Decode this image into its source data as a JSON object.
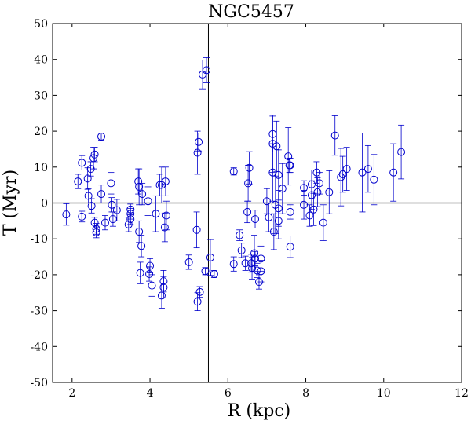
{
  "chart_data": {
    "type": "scatter",
    "title": "NGC5457",
    "xlabel": "R (kpc)",
    "ylabel": "T (Myr)",
    "xlim": [
      1.5,
      12
    ],
    "ylim": [
      -50,
      50
    ],
    "xticks": [
      2,
      4,
      6,
      8,
      10,
      12
    ],
    "yticks": [
      -50,
      -40,
      -30,
      -20,
      -10,
      0,
      10,
      20,
      30,
      40,
      50
    ],
    "grid": false,
    "marker_color": "#0000cc",
    "reference_lines": {
      "vertical_x": 5.5,
      "horizontal_y": 0
    },
    "points": [
      {
        "x": 1.85,
        "y": -3.2,
        "err": 3.0
      },
      {
        "x": 2.15,
        "y": 6.0,
        "err": 2.0
      },
      {
        "x": 2.25,
        "y": 11.2,
        "err": 2.0
      },
      {
        "x": 2.25,
        "y": -3.8,
        "err": 1.5
      },
      {
        "x": 2.4,
        "y": 6.8,
        "err": 3.0
      },
      {
        "x": 2.42,
        "y": 2.0,
        "err": 2.0
      },
      {
        "x": 2.48,
        "y": 9.5,
        "err": 2.0
      },
      {
        "x": 2.5,
        "y": -0.8,
        "err": 2.0
      },
      {
        "x": 2.55,
        "y": 12.5,
        "err": 3.0
      },
      {
        "x": 2.58,
        "y": 13.5,
        "err": 2.0
      },
      {
        "x": 2.58,
        "y": -5.5,
        "err": 1.5
      },
      {
        "x": 2.62,
        "y": -7.2,
        "err": 1.5
      },
      {
        "x": 2.62,
        "y": -8.2,
        "err": 1.5
      },
      {
        "x": 2.75,
        "y": 18.5,
        "err": 1.0
      },
      {
        "x": 2.75,
        "y": 2.5,
        "err": 2.5
      },
      {
        "x": 2.85,
        "y": -5.5,
        "err": 2.0
      },
      {
        "x": 3.0,
        "y": 5.5,
        "err": 3.0
      },
      {
        "x": 3.02,
        "y": -0.5,
        "err": 2.0
      },
      {
        "x": 3.05,
        "y": -4.5,
        "err": 2.0
      },
      {
        "x": 3.15,
        "y": -2.0,
        "err": 3.0
      },
      {
        "x": 3.45,
        "y": -6.0,
        "err": 2.0
      },
      {
        "x": 3.5,
        "y": -1.8,
        "err": 1.5
      },
      {
        "x": 3.5,
        "y": -3.0,
        "err": 1.5
      },
      {
        "x": 3.5,
        "y": -4.5,
        "err": 1.5
      },
      {
        "x": 3.7,
        "y": 6.0,
        "err": 3.5
      },
      {
        "x": 3.72,
        "y": 4.5,
        "err": 5.0
      },
      {
        "x": 3.72,
        "y": -8.0,
        "err": 3.0
      },
      {
        "x": 3.75,
        "y": -19.5,
        "err": 3.0
      },
      {
        "x": 3.78,
        "y": -12.0,
        "err": 3.0
      },
      {
        "x": 3.8,
        "y": 2.5,
        "err": 3.0
      },
      {
        "x": 3.95,
        "y": 0.5,
        "err": 4.0
      },
      {
        "x": 3.98,
        "y": -19.8,
        "err": 2.0
      },
      {
        "x": 4.0,
        "y": -17.5,
        "err": 2.0
      },
      {
        "x": 4.05,
        "y": -23.0,
        "err": 3.0
      },
      {
        "x": 4.15,
        "y": -3.0,
        "err": 5.0
      },
      {
        "x": 4.25,
        "y": 5.0,
        "err": 3.0
      },
      {
        "x": 4.3,
        "y": 5.0,
        "err": 5.0
      },
      {
        "x": 4.3,
        "y": -25.8,
        "err": 3.5
      },
      {
        "x": 4.35,
        "y": -21.8,
        "err": 3.0
      },
      {
        "x": 4.35,
        "y": -23.5,
        "err": 3.0
      },
      {
        "x": 4.38,
        "y": -6.8,
        "err": 4.0
      },
      {
        "x": 4.4,
        "y": 6.0,
        "err": 4.0
      },
      {
        "x": 4.42,
        "y": -3.5,
        "err": 4.0
      },
      {
        "x": 5.0,
        "y": -16.5,
        "err": 2.0
      },
      {
        "x": 5.2,
        "y": -7.5,
        "err": 5.0
      },
      {
        "x": 5.22,
        "y": 14.0,
        "err": 6.0
      },
      {
        "x": 5.25,
        "y": 17.0,
        "err": 2.5
      },
      {
        "x": 5.22,
        "y": -27.5,
        "err": 2.5
      },
      {
        "x": 5.28,
        "y": -24.8,
        "err": 1.5
      },
      {
        "x": 5.35,
        "y": 35.8,
        "err": 4.0
      },
      {
        "x": 5.45,
        "y": 37.0,
        "err": 3.5
      },
      {
        "x": 5.42,
        "y": -19.0,
        "err": 1.0
      },
      {
        "x": 5.55,
        "y": -15.2,
        "err": 5.0
      },
      {
        "x": 5.65,
        "y": -19.8,
        "err": 1.0
      },
      {
        "x": 6.15,
        "y": 8.8,
        "err": 1.0
      },
      {
        "x": 6.15,
        "y": -17.0,
        "err": 2.0
      },
      {
        "x": 6.3,
        "y": -9.0,
        "err": 1.5
      },
      {
        "x": 6.35,
        "y": -13.2,
        "err": 2.0
      },
      {
        "x": 6.45,
        "y": -16.8,
        "err": 2.0
      },
      {
        "x": 6.5,
        "y": -2.5,
        "err": 3.0
      },
      {
        "x": 6.52,
        "y": 5.5,
        "err": 5.0
      },
      {
        "x": 6.55,
        "y": 9.8,
        "err": 4.5
      },
      {
        "x": 6.6,
        "y": -16.8,
        "err": 2.5
      },
      {
        "x": 6.62,
        "y": -18.2,
        "err": 3.0
      },
      {
        "x": 6.68,
        "y": -14.0,
        "err": 5.0
      },
      {
        "x": 6.7,
        "y": -4.5,
        "err": 2.5
      },
      {
        "x": 6.7,
        "y": -15.5,
        "err": 2.0
      },
      {
        "x": 6.75,
        "y": -18.8,
        "err": 2.0
      },
      {
        "x": 6.8,
        "y": -22.0,
        "err": 2.0
      },
      {
        "x": 6.85,
        "y": -19.0,
        "err": 3.0
      },
      {
        "x": 6.85,
        "y": -15.5,
        "err": 3.5
      },
      {
        "x": 7.0,
        "y": 0.5,
        "err": 3.5
      },
      {
        "x": 7.05,
        "y": -4.0,
        "err": 4.0
      },
      {
        "x": 7.15,
        "y": 19.2,
        "err": 5.0
      },
      {
        "x": 7.15,
        "y": 16.5,
        "err": 8.0
      },
      {
        "x": 7.15,
        "y": 8.5,
        "err": 8.0
      },
      {
        "x": 7.18,
        "y": -8.0,
        "err": 5.0
      },
      {
        "x": 7.22,
        "y": -0.5,
        "err": 8.0
      },
      {
        "x": 7.25,
        "y": 15.8,
        "err": 7.0
      },
      {
        "x": 7.3,
        "y": 7.8,
        "err": 7.0
      },
      {
        "x": 7.3,
        "y": -1.5,
        "err": 5.0
      },
      {
        "x": 7.3,
        "y": -5.0,
        "err": 5.0
      },
      {
        "x": 7.4,
        "y": 4.0,
        "err": 7.0
      },
      {
        "x": 7.55,
        "y": 13.0,
        "err": 8.0
      },
      {
        "x": 7.58,
        "y": 10.5,
        "err": 2.0
      },
      {
        "x": 7.6,
        "y": 10.5,
        "err": 2.0
      },
      {
        "x": 7.6,
        "y": -2.5,
        "err": 2.0
      },
      {
        "x": 7.6,
        "y": -12.2,
        "err": 3.0
      },
      {
        "x": 7.95,
        "y": 4.2,
        "err": 2.0
      },
      {
        "x": 7.95,
        "y": -0.5,
        "err": 4.0
      },
      {
        "x": 8.1,
        "y": -3.5,
        "err": 3.0
      },
      {
        "x": 8.15,
        "y": 5.2,
        "err": 4.0
      },
      {
        "x": 8.15,
        "y": 2.2,
        "err": 4.0
      },
      {
        "x": 8.2,
        "y": -1.8,
        "err": 4.5
      },
      {
        "x": 8.28,
        "y": 8.5,
        "err": 3.0
      },
      {
        "x": 8.3,
        "y": 3.0,
        "err": 4.0
      },
      {
        "x": 8.35,
        "y": 5.5,
        "err": 3.0
      },
      {
        "x": 8.45,
        "y": -5.5,
        "err": 5.0
      },
      {
        "x": 8.6,
        "y": 3.0,
        "err": 6.0
      },
      {
        "x": 8.75,
        "y": 18.8,
        "err": 5.5
      },
      {
        "x": 8.9,
        "y": 7.2,
        "err": 8.0
      },
      {
        "x": 8.95,
        "y": 8.0,
        "err": 5.0
      },
      {
        "x": 9.05,
        "y": 9.5,
        "err": 6.0
      },
      {
        "x": 9.45,
        "y": 8.5,
        "err": 11.0
      },
      {
        "x": 9.6,
        "y": 9.5,
        "err": 6.5
      },
      {
        "x": 9.75,
        "y": 6.5,
        "err": 7.0
      },
      {
        "x": 10.25,
        "y": 8.5,
        "err": 8.0
      },
      {
        "x": 10.45,
        "y": 14.2,
        "err": 7.5
      }
    ]
  }
}
